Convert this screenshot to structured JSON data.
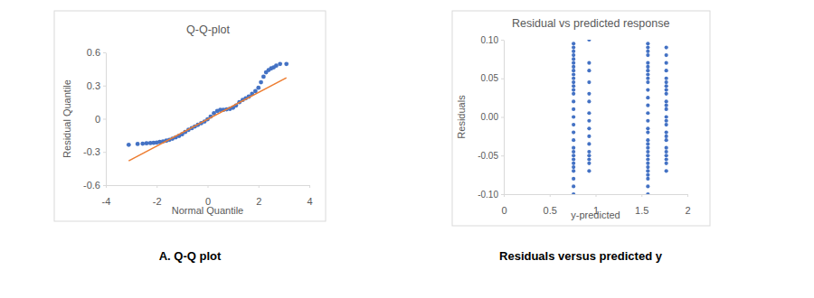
{
  "chart_data": [
    {
      "type": "scatter",
      "title": "Q-Q-plot",
      "x_label": "Normal Quantile",
      "y_label": "Residual Quantile",
      "annotations": [
        "A. Q-Q plot"
      ],
      "xlim": [
        -4,
        4
      ],
      "xticks": [
        -4,
        -2,
        0,
        2,
        4
      ],
      "ylim": [
        -0.6,
        0.6
      ],
      "yticks": [
        -0.6,
        -0.3,
        0,
        0.3,
        0.6
      ],
      "grid": false,
      "series": [
        {
          "type": "scatter",
          "color": "#4472c4",
          "marker": "circle",
          "x": [
            -3.1,
            -2.75,
            -2.55,
            -2.4,
            -2.25,
            -2.12,
            -2.0,
            -1.88,
            -1.75,
            -1.62,
            -1.5,
            -1.38,
            -1.25,
            -1.12,
            -1.0,
            -0.88,
            -0.75,
            -0.62,
            -0.5,
            -0.38,
            -0.25,
            -0.12,
            0.0,
            0.12,
            0.25,
            0.38,
            0.5,
            0.62,
            0.75,
            0.88,
            1.0,
            1.12,
            1.25,
            1.38,
            1.5,
            1.62,
            1.75,
            1.88,
            2.0,
            2.1,
            2.2,
            2.3,
            2.4,
            2.5,
            2.6,
            2.7,
            2.85,
            3.1
          ],
          "values": [
            -0.235,
            -0.228,
            -0.225,
            -0.222,
            -0.22,
            -0.218,
            -0.215,
            -0.21,
            -0.205,
            -0.198,
            -0.19,
            -0.18,
            -0.168,
            -0.155,
            -0.14,
            -0.12,
            -0.1,
            -0.085,
            -0.07,
            -0.055,
            -0.04,
            -0.025,
            -0.005,
            0.02,
            0.05,
            0.07,
            0.08,
            0.08,
            0.085,
            0.09,
            0.1,
            0.12,
            0.15,
            0.17,
            0.185,
            0.2,
            0.225,
            0.25,
            0.28,
            0.33,
            0.38,
            0.42,
            0.44,
            0.455,
            0.465,
            0.48,
            0.495,
            0.495
          ]
        },
        {
          "type": "line",
          "color": "#ed7d31",
          "line_style": "solid",
          "x": [
            -3.1,
            3.1
          ],
          "values": [
            -0.38,
            0.37
          ]
        }
      ]
    },
    {
      "type": "scatter",
      "title": "Residual vs predicted response",
      "x_label": "y-predicted",
      "y_label": "Residuals",
      "annotations": [
        "Residuals versus predicted y"
      ],
      "xlim": [
        0,
        2
      ],
      "xticks": [
        0,
        0.5,
        1,
        1.5,
        2
      ],
      "ylim": [
        -0.1,
        0.1
      ],
      "yticks": [
        {
          "value": -0.1,
          "label": "-0.10"
        },
        {
          "value": -0.05,
          "label": "-0.05"
        },
        {
          "value": 0,
          "label": "0.00"
        },
        {
          "value": 0.05,
          "label": "0.05"
        },
        {
          "value": 0.1,
          "label": "0.10"
        }
      ],
      "grid": false,
      "series": [
        {
          "type": "scatter",
          "color": "#4472c4",
          "marker": "circle",
          "x": [
            0.76,
            0.76,
            0.76,
            0.76,
            0.76,
            0.76,
            0.76,
            0.76,
            0.76,
            0.76,
            0.76,
            0.76,
            0.76,
            0.76,
            0.76,
            0.76,
            0.76,
            0.76,
            0.76,
            0.76,
            0.76,
            0.76,
            0.76,
            0.76,
            0.76,
            0.76,
            0.76,
            0.76,
            0.76,
            0.76,
            0.93,
            0.93,
            0.93,
            0.93,
            0.93,
            0.93,
            0.93,
            0.93,
            0.93,
            0.93,
            0.93,
            0.93,
            0.93,
            0.93,
            0.93,
            0.93,
            1.57,
            1.57,
            1.57,
            1.57,
            1.57,
            1.57,
            1.57,
            1.57,
            1.57,
            1.57,
            1.57,
            1.57,
            1.57,
            1.57,
            1.57,
            1.57,
            1.57,
            1.57,
            1.57,
            1.57,
            1.57,
            1.57,
            1.57,
            1.57,
            1.57,
            1.57,
            1.57,
            1.57,
            1.57,
            1.57,
            1.77,
            1.77,
            1.77,
            1.77,
            1.77,
            1.77,
            1.77,
            1.77,
            1.77,
            1.77,
            1.77,
            1.77,
            1.77,
            1.77,
            1.77,
            1.77,
            1.77,
            1.77,
            1.77,
            1.77,
            1.77,
            1.77,
            1.77,
            1.77
          ],
          "values": [
            0.095,
            0.09,
            0.085,
            0.08,
            0.075,
            0.07,
            0.065,
            0.06,
            0.055,
            0.05,
            0.045,
            0.04,
            0.035,
            0.03,
            0.02,
            0.01,
            0.0,
            -0.01,
            -0.02,
            -0.03,
            -0.04,
            -0.045,
            -0.05,
            -0.055,
            -0.06,
            -0.065,
            -0.07,
            -0.08,
            -0.09,
            -0.1,
            0.1,
            0.07,
            0.06,
            0.045,
            0.03,
            0.02,
            0.005,
            -0.005,
            -0.015,
            -0.025,
            -0.035,
            -0.045,
            -0.05,
            -0.055,
            -0.06,
            -0.07,
            0.095,
            0.09,
            0.085,
            0.08,
            0.07,
            0.065,
            0.06,
            0.055,
            0.05,
            0.045,
            0.035,
            0.025,
            0.015,
            0.005,
            -0.005,
            -0.015,
            -0.02,
            -0.03,
            -0.035,
            -0.04,
            -0.045,
            -0.05,
            -0.055,
            -0.06,
            -0.065,
            -0.07,
            -0.075,
            -0.08,
            -0.09,
            -0.1,
            0.09,
            0.08,
            0.07,
            0.06,
            0.05,
            0.045,
            0.04,
            0.035,
            0.03,
            0.02,
            0.015,
            0.01,
            0.0,
            -0.005,
            -0.01,
            -0.02,
            -0.025,
            -0.03,
            -0.04,
            -0.045,
            -0.05,
            -0.055,
            -0.06,
            -0.07
          ]
        }
      ]
    }
  ]
}
